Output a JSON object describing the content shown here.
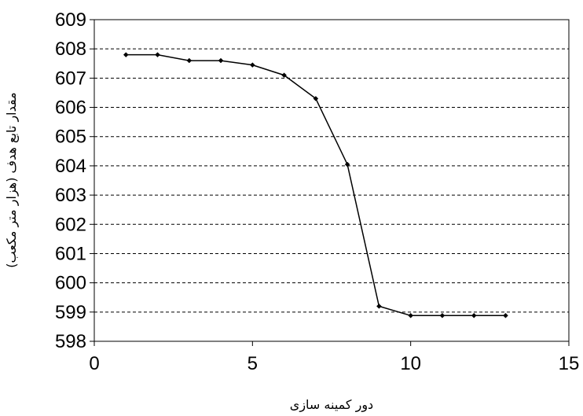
{
  "chart_data": {
    "type": "line",
    "title": "",
    "xlabel": "دور کمینه سازی",
    "ylabel": "مقدار تابع هدف (هزار متر مکعب)",
    "xlim": [
      0,
      15
    ],
    "ylim": [
      598,
      609
    ],
    "x_ticks": [
      0,
      5,
      10,
      15
    ],
    "y_ticks": [
      598,
      599,
      600,
      601,
      602,
      603,
      604,
      605,
      606,
      607,
      608,
      609
    ],
    "grid": {
      "horizontal": true,
      "style": "dashed",
      "vertical": false
    },
    "legend": "none",
    "series": [
      {
        "color": "#000000",
        "marker": "diamond",
        "x": [
          1,
          2,
          3,
          4,
          5,
          6,
          7,
          8,
          9,
          10,
          11,
          12,
          13
        ],
        "y": [
          607.8,
          607.8,
          607.6,
          607.6,
          607.45,
          607.1,
          606.3,
          604.05,
          599.2,
          598.88,
          598.88,
          598.88,
          598.88
        ]
      }
    ]
  }
}
